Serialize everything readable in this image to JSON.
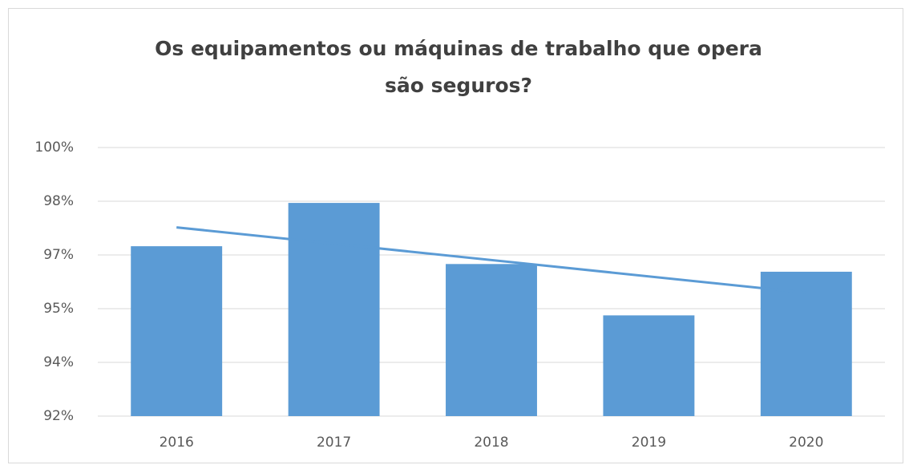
{
  "chart_data": {
    "type": "bar",
    "title": "Os equipamentos ou máquinas de trabalho que opera são seguros?",
    "categories": [
      "2016",
      "2017",
      "2018",
      "2019",
      "2020"
    ],
    "values": [
      97.06,
      98.35,
      96.53,
      95.0,
      96.3
    ],
    "color": "#5b9bd5",
    "trendline": true,
    "ylim": [
      92,
      100
    ],
    "yticks": [
      {
        "value": 92,
        "label": "92%"
      },
      {
        "value": 93.6,
        "label": "94%"
      },
      {
        "value": 95.2,
        "label": "95%"
      },
      {
        "value": 96.8,
        "label": "97%"
      },
      {
        "value": 98.4,
        "label": "98%"
      },
      {
        "value": 100,
        "label": "100%"
      }
    ],
    "grid": true
  }
}
